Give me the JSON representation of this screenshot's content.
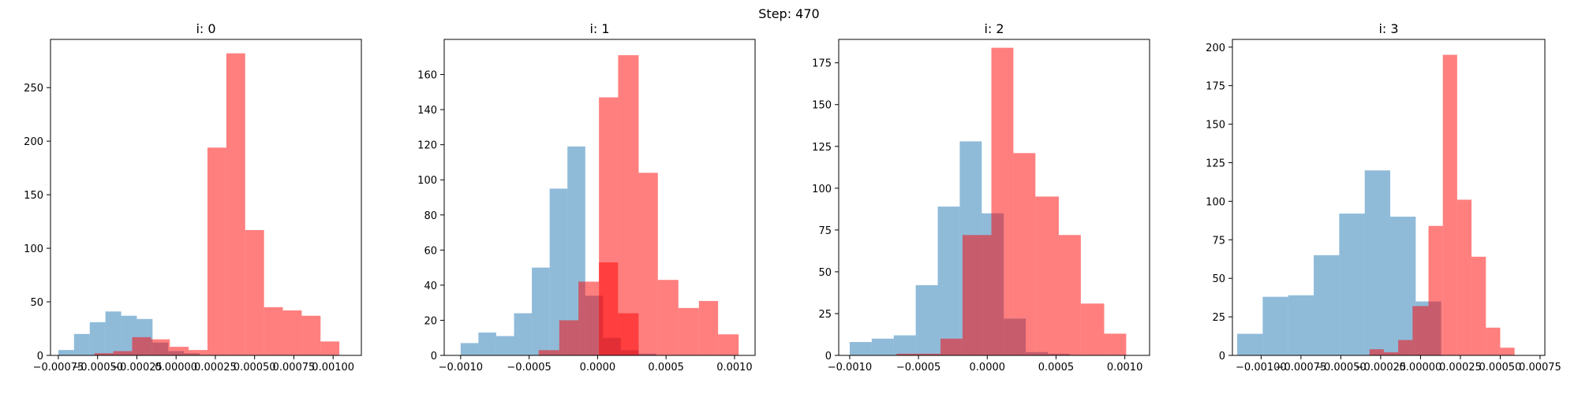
{
  "figure": {
    "suptitle": "Step: 470"
  },
  "chart_data": [
    {
      "type": "bar",
      "title": "i: 0",
      "xlim": [
        -0.0008,
        0.00118
      ],
      "ylim": [
        0,
        295
      ],
      "xticks": [
        -0.00075,
        -0.0005,
        -0.00025,
        0.0,
        0.00025,
        0.0005,
        0.00075,
        0.001
      ],
      "xtick_labels": [
        "−0.00075",
        "−0.00050",
        "−0.00025",
        "0.00000",
        "0.00025",
        "0.00050",
        "0.00075",
        "0.00100"
      ],
      "yticks": [
        0,
        50,
        100,
        150,
        200,
        250
      ],
      "ytick_labels": [
        "0",
        "50",
        "100",
        "150",
        "200",
        "250"
      ],
      "series": [
        {
          "color": "#1f77b4",
          "alpha": 0.5,
          "bin_edges": [
            -0.00075,
            -0.00065,
            -0.00055,
            -0.00045,
            -0.00035,
            -0.00025,
            -0.00015,
            -5e-05,
            5e-05,
            0.00015
          ],
          "counts": [
            5,
            20,
            31,
            41,
            37,
            34,
            12,
            4,
            2
          ]
        },
        {
          "color": "#ff0000",
          "alpha": 0.5,
          "bin_edges": [
            -0.00052,
            -0.0004,
            -0.00028,
            -0.00016,
            -4e-05,
            8e-05,
            0.0002,
            0.00032,
            0.00044,
            0.00056,
            0.00068,
            0.0008,
            0.00092,
            0.00104
          ],
          "counts": [
            2,
            4,
            17,
            15,
            8,
            5,
            194,
            282,
            117,
            45,
            42,
            37,
            13
          ]
        }
      ]
    },
    {
      "type": "bar",
      "title": "i: 1",
      "xlim": [
        -0.00112,
        0.00115
      ],
      "ylim": [
        0,
        180
      ],
      "xticks": [
        -0.001,
        -0.0005,
        0.0,
        0.0005,
        0.001
      ],
      "xtick_labels": [
        "−0.0010",
        "−0.0005",
        "0.0000",
        "0.0005",
        "0.0010"
      ],
      "yticks": [
        0,
        20,
        40,
        60,
        80,
        100,
        120,
        140,
        160
      ],
      "ytick_labels": [
        "0",
        "20",
        "40",
        "60",
        "80",
        "100",
        "120",
        "140",
        "160"
      ],
      "series": [
        {
          "color": "#1f77b4",
          "alpha": 0.5,
          "bin_edges": [
            -0.001,
            -0.00087,
            -0.00074,
            -0.00061,
            -0.00048,
            -0.00035,
            -0.00022,
            -9e-05,
            4e-05,
            0.00017,
            0.0003,
            0.00043
          ],
          "counts": [
            7,
            13,
            11,
            24,
            50,
            95,
            119,
            34,
            10,
            3,
            1
          ]
        },
        {
          "color": "#ff0000",
          "alpha": 0.5,
          "bin_edges": [
            -0.00043,
            -0.00028,
            -0.00014,
            1e-05,
            0.00015,
            0.0003,
            0.00044,
            0.00059,
            0.00074,
            0.00088,
            0.00103
          ],
          "counts": [
            3,
            20,
            42,
            147,
            171,
            104,
            43,
            27,
            31,
            12
          ]
        },
        {
          "color": "#ff0000",
          "alpha": 0.5,
          "bin_edges": [
            -0.00014,
            1e-05,
            0.00015,
            0.0003
          ],
          "counts": [
            0,
            53,
            24
          ]
        }
      ]
    },
    {
      "type": "bar",
      "title": "i: 2",
      "xlim": [
        -0.00108,
        0.00118
      ],
      "ylim": [
        0,
        189
      ],
      "xticks": [
        -0.001,
        -0.0005,
        0.0,
        0.0005,
        0.001
      ],
      "xtick_labels": [
        "−0.0010",
        "−0.0005",
        "0.0000",
        "0.0005",
        "0.0010"
      ],
      "yticks": [
        0,
        25,
        50,
        75,
        100,
        125,
        150,
        175
      ],
      "ytick_labels": [
        "0",
        "25",
        "50",
        "75",
        "100",
        "125",
        "150",
        "175"
      ],
      "series": [
        {
          "color": "#1f77b4",
          "alpha": 0.5,
          "bin_edges": [
            -0.001,
            -0.00084,
            -0.00068,
            -0.00052,
            -0.00036,
            -0.0002,
            -4e-05,
            0.00012,
            0.00028,
            0.00044,
            0.0006
          ],
          "counts": [
            8,
            10,
            12,
            42,
            89,
            128,
            85,
            22,
            2,
            1
          ]
        },
        {
          "color": "#ff0000",
          "alpha": 0.5,
          "bin_edges": [
            -0.00066,
            -0.0005,
            -0.00034,
            -0.00018,
            3e-05,
            0.00019,
            0.00035,
            0.00052,
            0.00068,
            0.00085,
            0.00101
          ],
          "counts": [
            1,
            1,
            10,
            72,
            184,
            121,
            95,
            72,
            31,
            13
          ]
        }
      ]
    },
    {
      "type": "bar",
      "title": "i: 3",
      "xlim": [
        -0.00118,
        0.00078
      ],
      "ylim": [
        0,
        205
      ],
      "xticks": [
        -0.001,
        -0.00075,
        -0.0005,
        -0.00025,
        0.0,
        0.00025,
        0.0005,
        0.00075
      ],
      "xtick_labels": [
        "−0.00100",
        "−0.00075",
        "−0.00050",
        "−0.00025",
        "0.00000",
        "0.00025",
        "0.00050",
        "0.00075"
      ],
      "yticks": [
        0,
        25,
        50,
        75,
        100,
        125,
        150,
        175,
        200
      ],
      "ytick_labels": [
        "0",
        "25",
        "50",
        "75",
        "100",
        "125",
        "150",
        "175",
        "200"
      ],
      "series": [
        {
          "color": "#1f77b4",
          "alpha": 0.5,
          "bin_edges": [
            -0.00115,
            -0.00099,
            -0.00083,
            -0.00067,
            -0.00051,
            -0.00035,
            -0.00019,
            -3e-05,
            0.00013
          ],
          "counts": [
            14,
            38,
            39,
            65,
            92,
            120,
            90,
            35
          ]
        },
        {
          "color": "#ff0000",
          "alpha": 0.5,
          "bin_edges": [
            -0.00032,
            -0.00023,
            -0.00014,
            -5e-05,
            5e-05,
            0.00014,
            0.00023,
            0.00032,
            0.00041,
            0.0005,
            0.00059,
            0.00068
          ],
          "counts": [
            4,
            2,
            10,
            32,
            84,
            195,
            101,
            64,
            18,
            5,
            0
          ]
        }
      ]
    }
  ]
}
